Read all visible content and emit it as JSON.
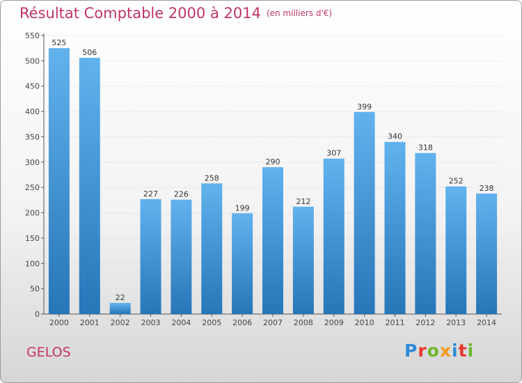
{
  "header": {
    "title": "Résultat Comptable 2000 à 2014",
    "subtitle": "(en milliers d'€)"
  },
  "footer": {
    "place": "GELOS",
    "logo": "Proxiti"
  },
  "colors": {
    "title": "#c0336a",
    "bar_top": "#62b2ee",
    "bar_bottom": "#2676b8",
    "logo_letters": [
      "#2d8ad8",
      "#e8382d",
      "#6bb82a",
      "#f29a1e",
      "#2d8ad8",
      "#e8382d",
      "#6bb82a"
    ]
  },
  "chart_data": {
    "type": "bar",
    "categories": [
      "2000",
      "2001",
      "2002",
      "2003",
      "2004",
      "2005",
      "2006",
      "2007",
      "2008",
      "2009",
      "2010",
      "2011",
      "2012",
      "2013",
      "2014"
    ],
    "values": [
      525,
      506,
      22,
      227,
      226,
      258,
      199,
      290,
      212,
      307,
      399,
      340,
      318,
      252,
      238
    ],
    "ylim": [
      0,
      550
    ],
    "yticks": [
      0,
      50,
      100,
      150,
      200,
      250,
      300,
      350,
      400,
      450,
      500,
      550
    ],
    "grid": true,
    "title": "Résultat Comptable 2000 à 2014",
    "xlabel": "",
    "ylabel": ""
  }
}
